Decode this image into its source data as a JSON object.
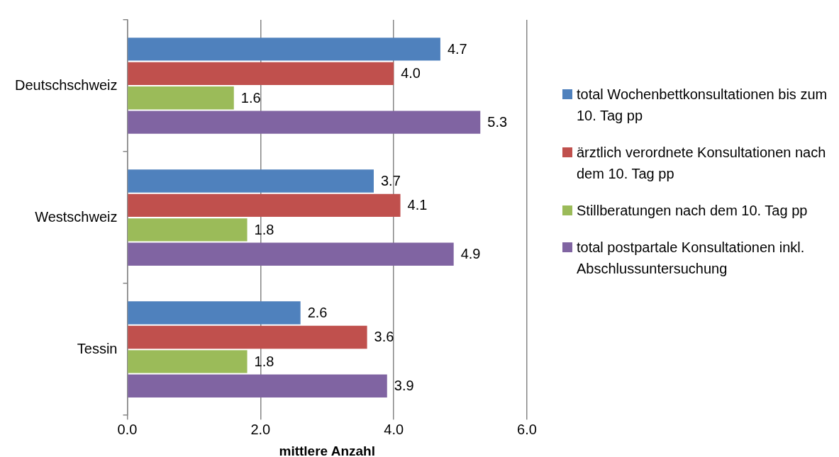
{
  "chart_data": {
    "type": "bar",
    "orientation": "horizontal",
    "xlabel": "mittlere Anzahl",
    "categories": [
      "Deutschschweiz",
      "Westschweiz",
      "Tessin"
    ],
    "series": [
      {
        "name": "total Wochenbettkonsultationen bis zum 10. Tag pp",
        "color": "#4f81bd",
        "values": [
          4.7,
          3.7,
          2.6
        ],
        "value_labels": [
          "4.7",
          "3.7",
          "2.6"
        ]
      },
      {
        "name": "ärztlich verordnete Konsultationen nach dem 10. Tag pp",
        "color": "#c0504d",
        "values": [
          4.0,
          4.1,
          3.6
        ],
        "value_labels": [
          "4.0",
          "4.1",
          "3.6"
        ]
      },
      {
        "name": "Stillberatungen nach dem 10. Tag pp",
        "color": "#9bbb59",
        "values": [
          1.6,
          1.8,
          1.8
        ],
        "value_labels": [
          "1.6",
          "1.8",
          "1.8"
        ]
      },
      {
        "name": "total postpartale Konsultationen inkl. Abschlussuntersuchung",
        "color": "#8064a2",
        "values": [
          5.3,
          4.9,
          3.9
        ],
        "value_labels": [
          "5.3",
          "4.9",
          "3.9"
        ]
      }
    ],
    "xlim": [
      0,
      6
    ],
    "xticks": [
      {
        "value": 0,
        "label": "0.0"
      },
      {
        "value": 2,
        "label": "2.0"
      },
      {
        "value": 4,
        "label": "4.0"
      },
      {
        "value": 6,
        "label": "6.0"
      }
    ],
    "grid": "x",
    "legend": "right"
  }
}
